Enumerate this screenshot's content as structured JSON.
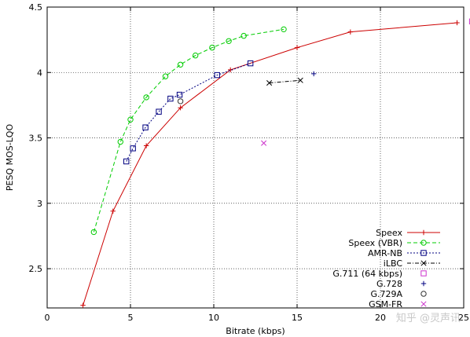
{
  "chart_data": {
    "type": "line",
    "title": "",
    "xlabel": "Bitrate (kbps)",
    "ylabel": "PESQ MOS-LQO",
    "xlim": [
      0,
      25
    ],
    "ylim": [
      2.2,
      4.5
    ],
    "xticks": [
      0,
      5,
      10,
      15,
      20,
      25
    ],
    "yticks": [
      2.5,
      3,
      3.5,
      4,
      4.5
    ],
    "xtick_labels": [
      "0",
      "5",
      "10",
      "15",
      "20",
      "25"
    ],
    "ytick_labels": [
      "2.5",
      "3",
      "3.5",
      "4",
      "4.5"
    ],
    "grid": true,
    "legend_position": "bottom-right",
    "series": [
      {
        "name": "Speex",
        "color": "#cc0000",
        "marker": "plus",
        "line": "solid",
        "points": [
          [
            2.15,
            2.22
          ],
          [
            3.95,
            2.94
          ],
          [
            5.95,
            3.44
          ],
          [
            8.0,
            3.73
          ],
          [
            11.0,
            4.02
          ],
          [
            15.0,
            4.19
          ],
          [
            18.2,
            4.31
          ],
          [
            24.6,
            4.38
          ]
        ]
      },
      {
        "name": "Speex (VBR)",
        "color": "#00cc00",
        "marker": "circle",
        "line": "dashed",
        "points": [
          [
            2.8,
            2.78
          ],
          [
            4.4,
            3.47
          ],
          [
            5.0,
            3.64
          ],
          [
            5.95,
            3.81
          ],
          [
            7.1,
            3.97
          ],
          [
            8.0,
            4.06
          ],
          [
            8.9,
            4.13
          ],
          [
            9.9,
            4.19
          ],
          [
            10.9,
            4.24
          ],
          [
            11.8,
            4.28
          ],
          [
            14.2,
            4.33
          ]
        ]
      },
      {
        "name": "AMR-NB",
        "color": "#000080",
        "marker": "square",
        "line": "dotted",
        "points": [
          [
            4.75,
            3.32
          ],
          [
            5.15,
            3.42
          ],
          [
            5.9,
            3.58
          ],
          [
            6.7,
            3.7
          ],
          [
            7.4,
            3.8
          ],
          [
            7.95,
            3.83
          ],
          [
            10.2,
            3.98
          ],
          [
            12.2,
            4.07
          ]
        ]
      },
      {
        "name": "iLBC",
        "color": "#000000",
        "marker": "x",
        "line": "dashdot",
        "points": [
          [
            13.33,
            3.92
          ],
          [
            15.2,
            3.94
          ]
        ]
      },
      {
        "name": "G.711 (64 kbps)",
        "color": "#cc33cc",
        "marker": "square",
        "line": "none",
        "points": [
          [
            25.5,
            4.39
          ]
        ]
      },
      {
        "name": "G.728",
        "color": "#000080",
        "marker": "plus",
        "line": "none",
        "points": [
          [
            16.0,
            3.99
          ]
        ]
      },
      {
        "name": "G.729A",
        "color": "#333333",
        "marker": "circle",
        "line": "none",
        "points": [
          [
            8.0,
            3.78
          ]
        ]
      },
      {
        "name": "GSM-FR",
        "color": "#cc33cc",
        "marker": "x",
        "line": "none",
        "points": [
          [
            13.0,
            3.46
          ]
        ]
      }
    ]
  },
  "watermark": {
    "text": "知乎 @灵声讯"
  }
}
